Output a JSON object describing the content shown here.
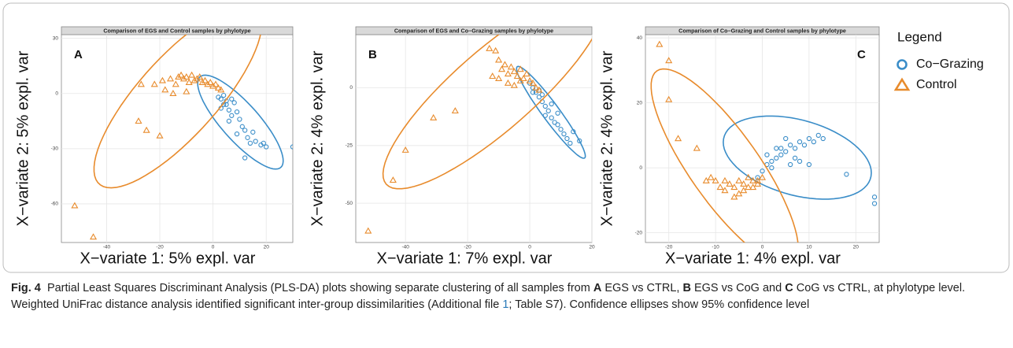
{
  "chart_data": [
    {
      "type": "scatter",
      "title": "Comparison of EGS and Control samples by phylotype",
      "annotation": "A",
      "x_label": "X−variate 1: 5% expl. var",
      "y_label": "X−variate 2: 5% expl. var",
      "xlim": [
        -57,
        30
      ],
      "ylim": [
        -81,
        32
      ],
      "xticks": [
        -40,
        -20,
        0,
        20
      ],
      "yticks": [
        -60,
        -30,
        0,
        30
      ],
      "grid": true,
      "series": [
        {
          "name": "Co−Grazing",
          "color": "#3a8dc8",
          "marker": "circle",
          "x": [
            2,
            3,
            4,
            5,
            3,
            5,
            6,
            7,
            6,
            8,
            9,
            10,
            11,
            12,
            9,
            13,
            14,
            16,
            18,
            20,
            19,
            12,
            15,
            30,
            4,
            7
          ],
          "values": [
            -2,
            -3,
            -1,
            -4,
            -8,
            -6,
            -9,
            -12,
            -15,
            -5,
            -10,
            -14,
            -18,
            -20,
            -22,
            -24,
            -27,
            -26,
            -28,
            -29,
            -27,
            -35,
            -21,
            -29,
            -6,
            -3
          ]
        },
        {
          "name": "Control",
          "color": "#e88b2c",
          "marker": "triangle",
          "x": [
            -52,
            -45,
            -28,
            -25,
            -20,
            -27,
            -22,
            -19,
            -18,
            -16,
            -14,
            -13,
            -12,
            -11,
            -10,
            -9,
            -8,
            -7,
            -6,
            -5,
            -4,
            -3,
            -2,
            -1,
            0,
            1,
            2,
            3,
            -15,
            -10
          ],
          "values": [
            -61,
            -78,
            -15,
            -20,
            -23,
            5,
            5,
            7,
            2,
            8,
            5,
            9,
            10,
            8,
            9,
            6,
            10,
            7,
            8,
            9,
            6,
            7,
            5,
            6,
            4,
            5,
            3,
            2,
            0,
            1
          ]
        }
      ]
    },
    {
      "type": "scatter",
      "title": "Comparison of EGS and Co−Grazing samples by phylotype",
      "annotation": "B",
      "x_label": "X−variate 1: 7% expl. var",
      "y_label": "X−variate 2: 4% expl. var",
      "xlim": [
        -56,
        20
      ],
      "ylim": [
        -67,
        23
      ],
      "xticks": [
        -40,
        -20,
        0,
        20
      ],
      "yticks": [
        -50,
        -25,
        0
      ],
      "grid": true,
      "series": [
        {
          "name": "Co−Grazing",
          "color": "#3a8dc8",
          "marker": "circle",
          "x": [
            0,
            1,
            2,
            3,
            4,
            5,
            6,
            5,
            7,
            8,
            9,
            10,
            11,
            12,
            13,
            16,
            14,
            9,
            7,
            3,
            1,
            4
          ],
          "values": [
            2,
            0,
            -2,
            -4,
            -6,
            -8,
            -10,
            -12,
            -13,
            -15,
            -16,
            -18,
            -20,
            -22,
            -24,
            -23,
            -19,
            -11,
            -7,
            -1,
            -2,
            -3
          ]
        },
        {
          "name": "Control",
          "color": "#e88b2c",
          "marker": "triangle",
          "x": [
            -52,
            -44,
            -40,
            -31,
            -24,
            -13,
            -11,
            -10,
            -9,
            -8,
            -7,
            -6,
            -5,
            -4,
            -3,
            -2,
            -1,
            0,
            1,
            2,
            3,
            -7,
            -5,
            -10,
            -12,
            -3
          ],
          "values": [
            -62,
            -40,
            -27,
            -13,
            -10,
            17,
            16,
            12,
            8,
            10,
            6,
            9,
            7,
            5,
            8,
            4,
            6,
            3,
            2,
            0,
            -1,
            2,
            1,
            4,
            5,
            3
          ]
        }
      ]
    },
    {
      "type": "scatter",
      "title": "Comparison of Co−Grazing and Control samples by phylotype",
      "annotation": "C",
      "x_label": "X−variate 1: 4% expl. var",
      "y_label": "X−variate 2: 4% expl. var",
      "xlim": [
        -25,
        25
      ],
      "ylim": [
        -23,
        41
      ],
      "xticks": [
        -20,
        -10,
        0,
        10,
        20
      ],
      "yticks": [
        -20,
        0,
        20,
        40
      ],
      "grid": true,
      "series": [
        {
          "name": "Co−Grazing",
          "color": "#3a8dc8",
          "marker": "circle",
          "x": [
            -1,
            0,
            1,
            2,
            1,
            3,
            4,
            5,
            4,
            6,
            7,
            8,
            9,
            10,
            11,
            12,
            13,
            7,
            5,
            3,
            6,
            8,
            18,
            24,
            24,
            2,
            10
          ],
          "values": [
            -3,
            -1,
            1,
            2,
            4,
            3,
            4,
            5,
            6,
            7,
            6,
            8,
            7,
            9,
            8,
            10,
            9,
            3,
            9,
            6,
            1,
            2,
            -2,
            -11,
            -9,
            0,
            1
          ]
        },
        {
          "name": "Control",
          "color": "#e88b2c",
          "marker": "triangle",
          "x": [
            -22,
            -20,
            -20,
            -18,
            -14,
            -11,
            -10,
            -9,
            -8,
            -7,
            -6,
            -5,
            -4,
            -3,
            -2,
            -1,
            0,
            -8,
            -6,
            -4,
            -2,
            -3,
            -1,
            -12,
            -5
          ],
          "values": [
            38,
            33,
            21,
            9,
            6,
            -3,
            -4,
            -6,
            -7,
            -5,
            -6,
            -8,
            -5,
            -6,
            -4,
            -5,
            -3,
            -4,
            -9,
            -7,
            -6,
            -3,
            -4,
            -4,
            -4
          ]
        }
      ]
    }
  ],
  "legend_title": "Legend",
  "caption": {
    "label": "Fig. 4",
    "parts": [
      "Partial Least Squares Discriminant Analysis (PLS-DA) plots showing separate clustering of all samples from ",
      "A",
      " EGS vs CTRL, ",
      "B",
      " EGS vs CoG and ",
      "C",
      " CoG vs CTRL, at phylotype level. Weighted UniFrac distance analysis identified significant inter-group dissimilarities (Additional file ",
      "1",
      "; Table S7). Confidence ellipses show 95% confidence level"
    ]
  }
}
